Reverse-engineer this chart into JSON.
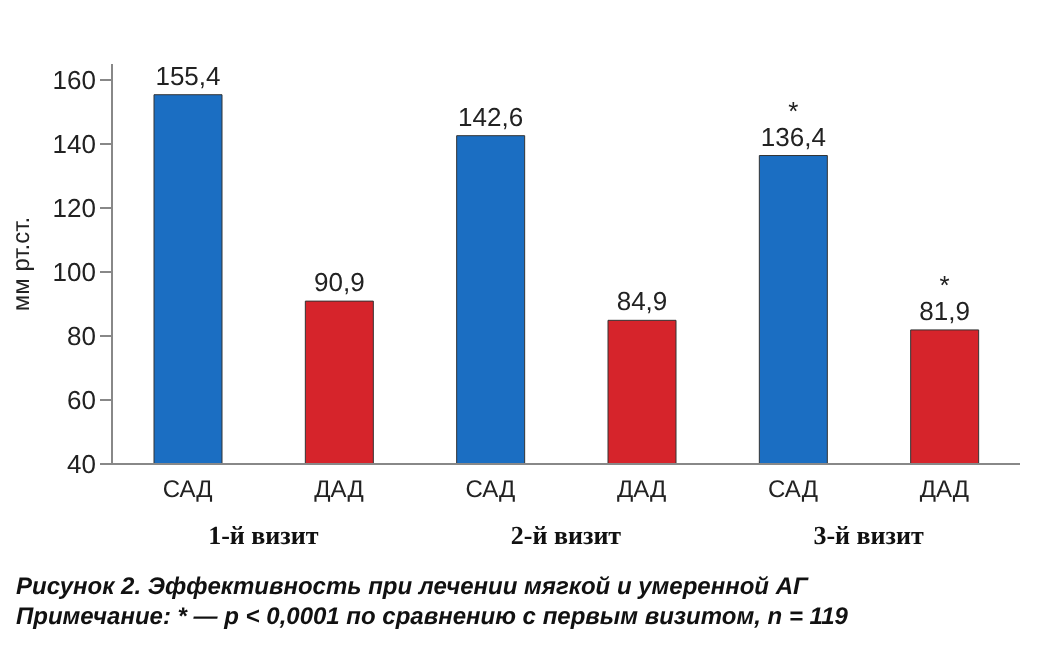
{
  "chart_data": {
    "type": "bar",
    "title": "Рисунок 2. Эффективность при лечении мягкой и умеренной АГ",
    "ylabel": "мм рт.ст.",
    "categories": [
      "САД",
      "ДАД",
      "САД",
      "ДАД",
      "САД",
      "ДАД"
    ],
    "values": [
      155.4,
      90.9,
      142.6,
      84.9,
      136.4,
      81.9
    ],
    "colors": [
      "#1b6ec2",
      "#d6242b",
      "#1b6ec2",
      "#d6242b",
      "#1b6ec2",
      "#d6242b"
    ],
    "value_labels": [
      "155,4",
      "90,9",
      "142,6",
      "84,9",
      "*\n136,4",
      "*\n81,9"
    ],
    "ylim": [
      40,
      165
    ],
    "yticks": [
      40,
      60,
      80,
      100,
      120,
      140,
      160
    ],
    "grid": false,
    "legend": false,
    "annotations": [
      "1-й визит",
      "2-й визит",
      "3-й визит",
      "Примечание: * — p < 0,0001 по сравнению с первым визитом, n = 119"
    ]
  }
}
